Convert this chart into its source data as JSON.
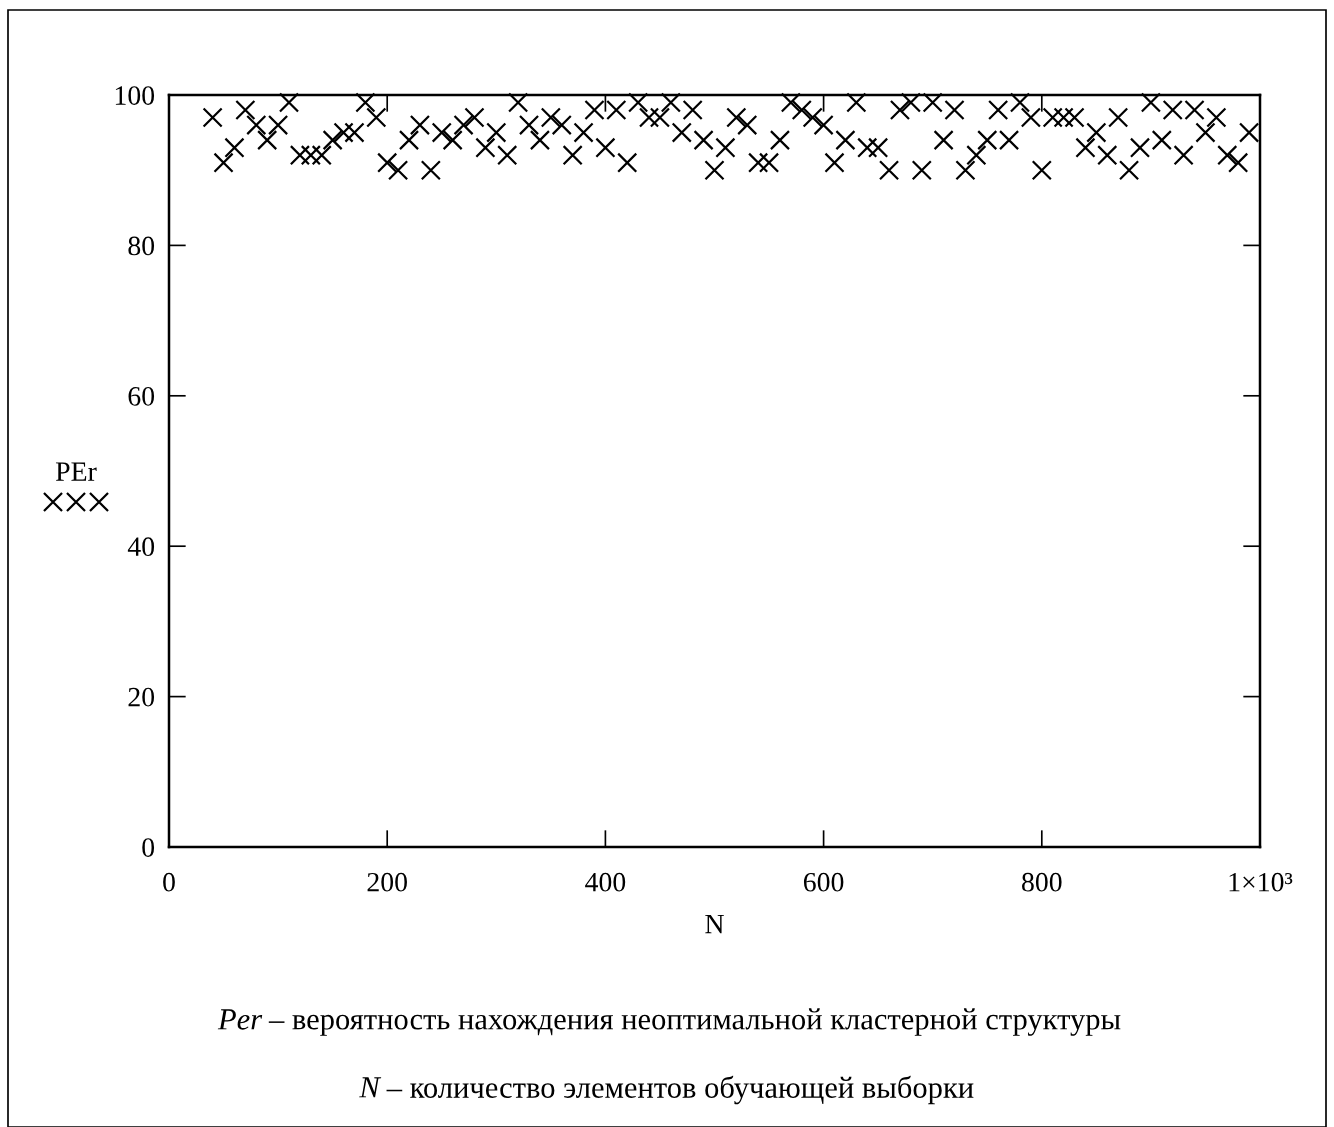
{
  "chart_data": {
    "type": "scatter",
    "xlabel": "N",
    "ylabel": "PEr",
    "marker": "cross",
    "color": "#000000",
    "grid": false,
    "legend": false,
    "x": [
      40,
      50,
      60,
      70,
      80,
      90,
      100,
      110,
      120,
      130,
      140,
      150,
      160,
      170,
      180,
      190,
      200,
      210,
      220,
      230,
      240,
      250,
      260,
      270,
      280,
      290,
      300,
      310,
      320,
      330,
      340,
      350,
      360,
      370,
      380,
      390,
      400,
      410,
      420,
      430,
      440,
      450,
      460,
      470,
      480,
      490,
      500,
      510,
      520,
      530,
      540,
      550,
      560,
      570,
      580,
      590,
      600,
      610,
      620,
      630,
      640,
      650,
      660,
      670,
      680,
      690,
      700,
      710,
      720,
      730,
      740,
      750,
      760,
      770,
      780,
      790,
      800,
      810,
      820,
      830,
      840,
      850,
      860,
      870,
      880,
      890,
      900,
      910,
      920,
      930,
      940,
      950,
      960,
      970,
      980,
      990
    ],
    "values": [
      97,
      91,
      93,
      98,
      96,
      94,
      96,
      99,
      92,
      92,
      92,
      94,
      95,
      95,
      99,
      97,
      91,
      90,
      94,
      96,
      90,
      95,
      94,
      96,
      97,
      93,
      95,
      92,
      99,
      96,
      94,
      97,
      96,
      92,
      95,
      98,
      93,
      98,
      91,
      99,
      97,
      97,
      99,
      95,
      98,
      94,
      90,
      93,
      97,
      96,
      91,
      91,
      94,
      99,
      98,
      97,
      96,
      91,
      94,
      99,
      93,
      93,
      90,
      98,
      99,
      90,
      99,
      94,
      98,
      90,
      92,
      94,
      98,
      94,
      99,
      97,
      90,
      97,
      97,
      97,
      93,
      95,
      92,
      97,
      90,
      93,
      99,
      94,
      98,
      92,
      98,
      95,
      97,
      92,
      91,
      95
    ],
    "xlim": [
      0,
      1000
    ],
    "xticks": [
      0,
      200,
      400,
      600,
      800,
      {
        "value": 1000,
        "label": "1×10³"
      }
    ],
    "ylim": [
      0,
      100
    ],
    "yticks": [
      0,
      20,
      40,
      60,
      80,
      100
    ],
    "annotations": [
      "Per – вероятность нахождения неоптимальной кластерной структуры",
      "N – количество элементов обучающей выборки"
    ]
  }
}
